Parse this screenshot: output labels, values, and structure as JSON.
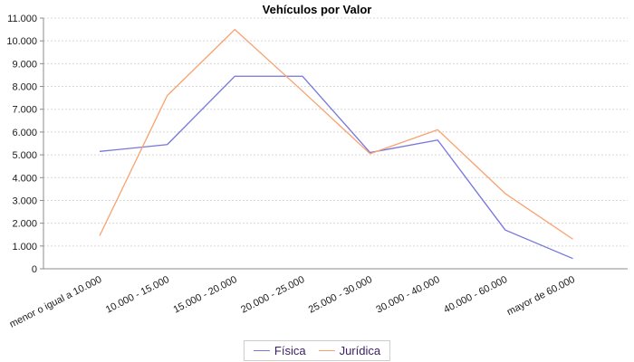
{
  "chart_data": {
    "type": "line",
    "title": "Vehículos por Valor",
    "categories": [
      "menor o igual a 10.000",
      "10.000 - 15.000",
      "15.000 - 20.000",
      "20.000 - 25.000",
      "25.000 - 30.000",
      "30.000 - 40.000",
      "40.000 - 60.000",
      "mayor de 60.000"
    ],
    "series": [
      {
        "name": "Física",
        "color": "#7676dd",
        "values": [
          5150,
          5450,
          8450,
          8450,
          5100,
          5650,
          1700,
          450
        ]
      },
      {
        "name": "Jurídica",
        "color": "#f9a26f",
        "values": [
          1450,
          7600,
          10500,
          7800,
          5050,
          6100,
          3300,
          1300
        ]
      }
    ],
    "ylim": [
      0,
      11000
    ],
    "ytick_step": 1000,
    "ytick_labels": [
      "0",
      "1.000",
      "2.000",
      "3.000",
      "4.000",
      "5.000",
      "6.000",
      "7.000",
      "8.000",
      "9.000",
      "10.000",
      "11.000"
    ],
    "xlabel": "",
    "ylabel": "",
    "grid": "horizontal-dashed",
    "legend_position": "bottom-center",
    "colors": {
      "grid": "#d8d8d8",
      "axis": "#8c8c8c",
      "tick_label": "#1a1a1a",
      "legend_text": "#3d2066",
      "background": "#ffffff"
    }
  }
}
